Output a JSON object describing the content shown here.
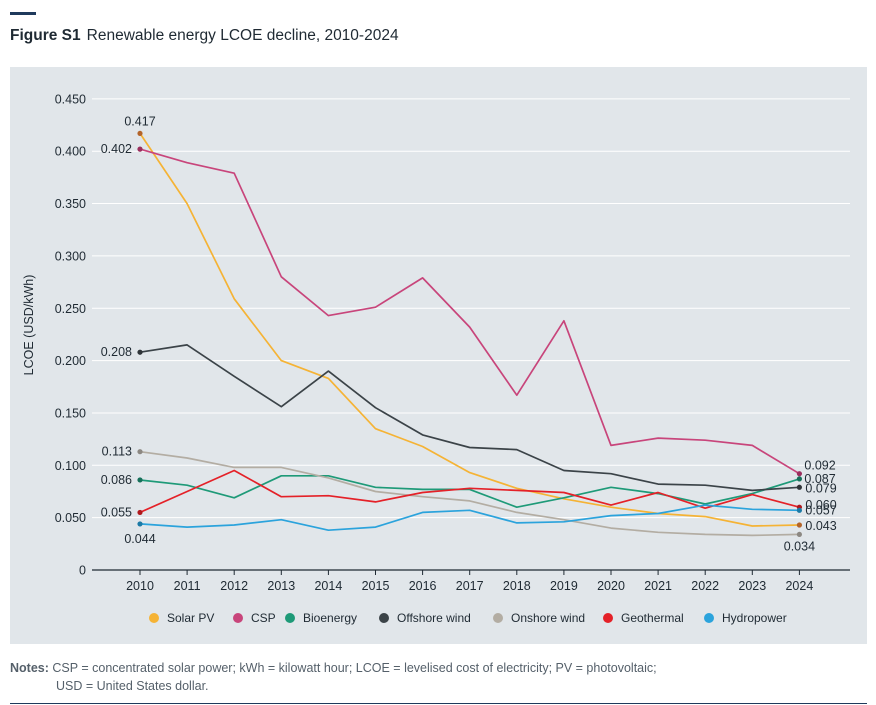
{
  "figure": {
    "label": "Figure S1",
    "title": "Renewable energy LCOE decline, 2010-2024"
  },
  "notes": {
    "label": "Notes:",
    "line1": "CSP = concentrated solar power; kWh = kilowatt hour; LCOE = levelised cost of electricity; PV = photovoltaic;",
    "line2": "USD = United States dollar."
  },
  "chart_data": {
    "type": "line",
    "title": "Renewable energy LCOE decline, 2010-2024",
    "ylabel": "LCOE (USD/kWh)",
    "xlabel": "",
    "ylim": [
      0,
      0.45
    ],
    "yticks": [
      0,
      0.05,
      0.1,
      0.15,
      0.2,
      0.25,
      0.3,
      0.35,
      0.4,
      0.45
    ],
    "ytick_labels": [
      "0",
      "0.050",
      "0.100",
      "0.150",
      "0.200",
      "0.250",
      "0.300",
      "0.350",
      "0.400",
      "0.450"
    ],
    "x": [
      "2010",
      "2011",
      "2012",
      "2013",
      "2014",
      "2015",
      "2016",
      "2017",
      "2018",
      "2019",
      "2020",
      "2021",
      "2022",
      "2023",
      "2024"
    ],
    "grid": "horizontal",
    "legend_position": "bottom",
    "series": [
      {
        "name": "Solar PV",
        "color": "#f5b335",
        "values": [
          0.417,
          0.35,
          0.259,
          0.2,
          0.183,
          0.135,
          0.118,
          0.093,
          0.078,
          0.068,
          0.06,
          0.054,
          0.051,
          0.042,
          0.043
        ],
        "start_label": "0.417",
        "end_label": "0.043"
      },
      {
        "name": "CSP",
        "color": "#c8457b",
        "values": [
          0.402,
          0.389,
          0.379,
          0.28,
          0.243,
          0.251,
          0.279,
          0.232,
          0.167,
          0.238,
          0.119,
          0.126,
          0.124,
          0.119,
          0.092
        ],
        "start_label": "0.402",
        "end_label": "0.092"
      },
      {
        "name": "Bioenergy",
        "color": "#1e9a78",
        "values": [
          0.086,
          0.081,
          0.069,
          0.09,
          0.09,
          0.079,
          0.077,
          0.077,
          0.06,
          0.069,
          0.079,
          0.073,
          0.063,
          0.073,
          0.087
        ],
        "start_label": "0.086",
        "end_label": "0.087"
      },
      {
        "name": "Offshore wind",
        "color": "#3b4348",
        "values": [
          0.208,
          0.215,
          0.185,
          0.156,
          0.19,
          0.155,
          0.129,
          0.117,
          0.115,
          0.095,
          0.092,
          0.082,
          0.081,
          0.076,
          0.079
        ],
        "start_label": "0.208",
        "end_label": "0.079"
      },
      {
        "name": "Onshore wind",
        "color": "#b3ada3",
        "values": [
          0.113,
          0.107,
          0.098,
          0.098,
          0.088,
          0.075,
          0.07,
          0.066,
          0.055,
          0.048,
          0.04,
          0.036,
          0.034,
          0.033,
          0.034
        ],
        "start_label": "0.113",
        "end_label": "0.034"
      },
      {
        "name": "Geothermal",
        "color": "#e42128",
        "values": [
          0.055,
          0.075,
          0.095,
          0.07,
          0.071,
          0.065,
          0.074,
          0.078,
          0.076,
          0.074,
          0.062,
          0.074,
          0.059,
          0.072,
          0.06
        ],
        "start_label": "0.055",
        "end_label": "0.060"
      },
      {
        "name": "Hydropower",
        "color": "#2ba3dc",
        "values": [
          0.044,
          0.041,
          0.043,
          0.048,
          0.038,
          0.041,
          0.055,
          0.057,
          0.045,
          0.046,
          0.052,
          0.054,
          0.062,
          0.058,
          0.057
        ],
        "start_label": "0.044",
        "end_label": "0.057"
      }
    ]
  }
}
